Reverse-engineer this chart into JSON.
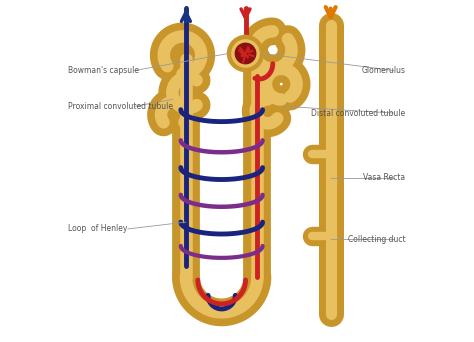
{
  "bg_color": "#ffffff",
  "tan": "#C8952A",
  "tan_hi": "#E8C060",
  "red": "#CC2222",
  "dark_red": "#8B1010",
  "blue": "#1A237E",
  "purple": "#7B2D8B",
  "arr_blue": "#1A3580",
  "arr_red": "#CC2222",
  "arr_orange": "#E07800",
  "lbl": "#555555",
  "lline": "#999999",
  "labels": {
    "bowmans": "Bowman's capsule",
    "glomerulus": "Glomerulus",
    "proximal": "Proximal convoluted tubule",
    "distal": "Distal convoluted tubule",
    "vasa_recta": "Vasa Recta",
    "loop": "Loop  of Henley",
    "collecting": "Collecting duct"
  },
  "figsize": [
    4.74,
    3.42
  ],
  "dpi": 100
}
